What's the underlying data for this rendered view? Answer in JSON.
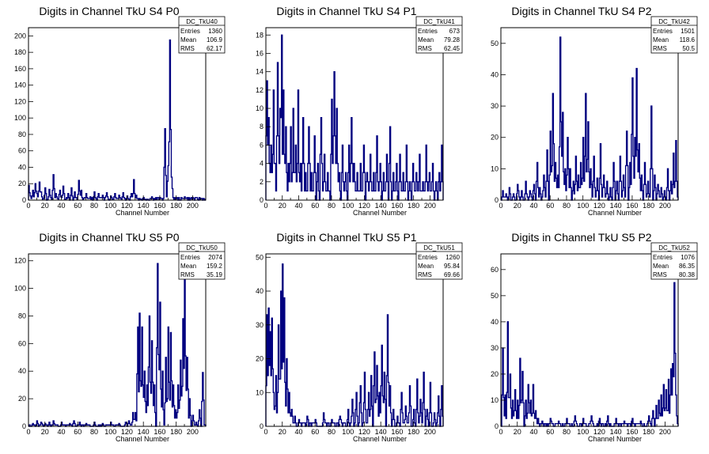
{
  "chart_data": [
    {
      "type": "histogram",
      "title": "Digits in Channel TkU S4 P0",
      "xlabel": "Channel Number",
      "xlim": [
        0,
        216
      ],
      "ylim": [
        0,
        210
      ],
      "xticks": [
        0,
        20,
        40,
        60,
        80,
        100,
        120,
        140,
        160,
        180,
        200
      ],
      "yticks": [
        0,
        20,
        40,
        60,
        80,
        100,
        120,
        140,
        160,
        180,
        200
      ],
      "stats": {
        "name": "DC_TkU40",
        "rows": [
          [
            "Entries",
            "1360"
          ],
          [
            "Mean",
            "106.9"
          ],
          [
            "RMS",
            "62.17"
          ]
        ]
      },
      "peaks": [
        [
          0,
          18
        ],
        [
          2,
          5
        ],
        [
          5,
          12
        ],
        [
          8,
          20
        ],
        [
          10,
          8
        ],
        [
          13,
          22
        ],
        [
          15,
          10
        ],
        [
          20,
          15
        ],
        [
          25,
          13
        ],
        [
          30,
          31
        ],
        [
          33,
          8
        ],
        [
          38,
          12
        ],
        [
          42,
          17
        ],
        [
          48,
          8
        ],
        [
          52,
          15
        ],
        [
          56,
          10
        ],
        [
          61,
          24
        ],
        [
          64,
          12
        ],
        [
          70,
          8
        ],
        [
          75,
          4
        ],
        [
          80,
          10
        ],
        [
          85,
          8
        ],
        [
          90,
          6
        ],
        [
          95,
          9
        ],
        [
          100,
          5
        ],
        [
          105,
          8
        ],
        [
          110,
          6
        ],
        [
          115,
          9
        ],
        [
          120,
          5
        ],
        [
          125,
          8
        ],
        [
          128,
          25
        ],
        [
          131,
          6
        ],
        [
          140,
          3
        ],
        [
          150,
          4
        ],
        [
          160,
          3
        ],
        [
          166,
          87
        ],
        [
          168,
          4
        ],
        [
          170,
          42
        ],
        [
          172,
          195
        ],
        [
          174,
          28
        ],
        [
          178,
          3
        ],
        [
          190,
          4
        ],
        [
          200,
          3
        ],
        [
          210,
          2
        ]
      ],
      "spread": 1,
      "base": 3
    },
    {
      "type": "histogram",
      "title": "Digits in Channel TkU S4 P1",
      "xlabel": "Channel Number",
      "xlim": [
        0,
        216
      ],
      "ylim": [
        0,
        18.8
      ],
      "xticks": [
        0,
        20,
        40,
        60,
        80,
        100,
        120,
        140,
        160,
        180,
        200
      ],
      "yticks": [
        0,
        2,
        4,
        6,
        8,
        10,
        12,
        14,
        16,
        18
      ],
      "stats": {
        "name": "DC_TkU41",
        "rows": [
          [
            "Entries",
            "673"
          ],
          [
            "Mean",
            "79.28"
          ],
          [
            "RMS",
            "62.45"
          ]
        ]
      },
      "peaks": [
        [
          1,
          13
        ],
        [
          3,
          9
        ],
        [
          6,
          6
        ],
        [
          9,
          12
        ],
        [
          11,
          4
        ],
        [
          14,
          15
        ],
        [
          17,
          10
        ],
        [
          19,
          18
        ],
        [
          21,
          12
        ],
        [
          24,
          8
        ],
        [
          27,
          4
        ],
        [
          30,
          8
        ],
        [
          33,
          10
        ],
        [
          36,
          6
        ],
        [
          39,
          12
        ],
        [
          42,
          4
        ],
        [
          45,
          9
        ],
        [
          48,
          3
        ],
        [
          52,
          8
        ],
        [
          55,
          3
        ],
        [
          59,
          7
        ],
        [
          63,
          4
        ],
        [
          67,
          9
        ],
        [
          71,
          5
        ],
        [
          75,
          3
        ],
        [
          80,
          11
        ],
        [
          83,
          14
        ],
        [
          86,
          10
        ],
        [
          89,
          3
        ],
        [
          93,
          6
        ],
        [
          97,
          3
        ],
        [
          101,
          6
        ],
        [
          104,
          9
        ],
        [
          107,
          4
        ],
        [
          111,
          3
        ],
        [
          115,
          4
        ],
        [
          119,
          6
        ],
        [
          123,
          3
        ],
        [
          127,
          5
        ],
        [
          131,
          3
        ],
        [
          135,
          7
        ],
        [
          139,
          4
        ],
        [
          143,
          3
        ],
        [
          147,
          5
        ],
        [
          151,
          8
        ],
        [
          155,
          3
        ],
        [
          159,
          4
        ],
        [
          163,
          5
        ],
        [
          167,
          3
        ],
        [
          171,
          6
        ],
        [
          175,
          2
        ],
        [
          179,
          4
        ],
        [
          183,
          3
        ],
        [
          187,
          5
        ],
        [
          191,
          2
        ],
        [
          195,
          6
        ],
        [
          199,
          3
        ],
        [
          203,
          4
        ],
        [
          207,
          2
        ],
        [
          211,
          3
        ],
        [
          214,
          6
        ]
      ],
      "spread": 1,
      "base": 1
    },
    {
      "type": "histogram",
      "title": "Digits in Channel TkU S4 P2",
      "xlabel": "Channel Number",
      "xlim": [
        0,
        216
      ],
      "ylim": [
        0,
        55
      ],
      "xticks": [
        0,
        20,
        40,
        60,
        80,
        100,
        120,
        140,
        160,
        180,
        200
      ],
      "yticks": [
        0,
        10,
        20,
        30,
        40,
        50
      ],
      "stats": {
        "name": "DC_TkU42",
        "rows": [
          [
            "Entries",
            "1501"
          ],
          [
            "Mean",
            "118.6"
          ],
          [
            "RMS",
            "50.5"
          ]
        ]
      },
      "peaks": [
        [
          2,
          3
        ],
        [
          6,
          2
        ],
        [
          10,
          4
        ],
        [
          15,
          2
        ],
        [
          20,
          5
        ],
        [
          25,
          3
        ],
        [
          30,
          6
        ],
        [
          35,
          3
        ],
        [
          40,
          5
        ],
        [
          44,
          12
        ],
        [
          47,
          4
        ],
        [
          52,
          8
        ],
        [
          56,
          16
        ],
        [
          60,
          22
        ],
        [
          63,
          34
        ],
        [
          66,
          12
        ],
        [
          69,
          8
        ],
        [
          72,
          52
        ],
        [
          75,
          28
        ],
        [
          78,
          10
        ],
        [
          81,
          20
        ],
        [
          84,
          10
        ],
        [
          88,
          6
        ],
        [
          91,
          14
        ],
        [
          94,
          8
        ],
        [
          97,
          12
        ],
        [
          100,
          20
        ],
        [
          103,
          34
        ],
        [
          106,
          25
        ],
        [
          109,
          10
        ],
        [
          113,
          14
        ],
        [
          117,
          7
        ],
        [
          121,
          18
        ],
        [
          125,
          8
        ],
        [
          129,
          6
        ],
        [
          133,
          4
        ],
        [
          137,
          12
        ],
        [
          141,
          6
        ],
        [
          145,
          14
        ],
        [
          149,
          8
        ],
        [
          153,
          22
        ],
        [
          157,
          12
        ],
        [
          160,
          39
        ],
        [
          163,
          20
        ],
        [
          165,
          42
        ],
        [
          168,
          18
        ],
        [
          171,
          8
        ],
        [
          175,
          12
        ],
        [
          179,
          6
        ],
        [
          183,
          30
        ],
        [
          187,
          8
        ],
        [
          191,
          5
        ],
        [
          195,
          4
        ],
        [
          199,
          3
        ],
        [
          203,
          10
        ],
        [
          207,
          6
        ],
        [
          210,
          15
        ],
        [
          213,
          19
        ]
      ],
      "spread": 1,
      "base": 1
    },
    {
      "type": "histogram",
      "title": "Digits in Channel TkU S5 P0",
      "xlabel": "Channel Number",
      "xlim": [
        0,
        216
      ],
      "ylim": [
        0,
        125
      ],
      "xticks": [
        0,
        20,
        40,
        60,
        80,
        100,
        120,
        140,
        160,
        180,
        200
      ],
      "yticks": [
        0,
        20,
        40,
        60,
        80,
        100,
        120
      ],
      "stats": {
        "name": "DC_TkU50",
        "rows": [
          [
            "Entries",
            "2074"
          ],
          [
            "Mean",
            "159.2"
          ],
          [
            "RMS",
            "35.19"
          ]
        ]
      },
      "peaks": [
        [
          5,
          2
        ],
        [
          10,
          4
        ],
        [
          15,
          3
        ],
        [
          20,
          2
        ],
        [
          25,
          3
        ],
        [
          30,
          4
        ],
        [
          40,
          3
        ],
        [
          50,
          2
        ],
        [
          55,
          4
        ],
        [
          62,
          3
        ],
        [
          70,
          2
        ],
        [
          80,
          3
        ],
        [
          90,
          2
        ],
        [
          100,
          3
        ],
        [
          110,
          2
        ],
        [
          118,
          3
        ],
        [
          122,
          4
        ],
        [
          127,
          10
        ],
        [
          130,
          10
        ],
        [
          133,
          72
        ],
        [
          135,
          82
        ],
        [
          138,
          72
        ],
        [
          141,
          40
        ],
        [
          144,
          30
        ],
        [
          147,
          80
        ],
        [
          150,
          62
        ],
        [
          153,
          30
        ],
        [
          157,
          118
        ],
        [
          160,
          90
        ],
        [
          163,
          40
        ],
        [
          167,
          50
        ],
        [
          170,
          72
        ],
        [
          173,
          68
        ],
        [
          176,
          30
        ],
        [
          179,
          12
        ],
        [
          182,
          30
        ],
        [
          185,
          48
        ],
        [
          188,
          78
        ],
        [
          190,
          108
        ],
        [
          193,
          50
        ],
        [
          196,
          20
        ],
        [
          200,
          8
        ],
        [
          204,
          3
        ],
        [
          208,
          12
        ],
        [
          212,
          39
        ]
      ],
      "spread": 1,
      "base": 1
    },
    {
      "type": "histogram",
      "title": "Digits in Channel TkU S5 P1",
      "xlabel": "Channel Number",
      "xlim": [
        0,
        216
      ],
      "ylim": [
        0,
        51
      ],
      "xticks": [
        0,
        20,
        40,
        60,
        80,
        100,
        120,
        140,
        160,
        180,
        200
      ],
      "yticks": [
        0,
        10,
        20,
        30,
        40,
        50
      ],
      "stats": {
        "name": "DC_TkU51",
        "rows": [
          [
            "Entries",
            "1260"
          ],
          [
            "Mean",
            "95.84"
          ],
          [
            "RMS",
            "69.66"
          ]
        ]
      },
      "peaks": [
        [
          1,
          33
        ],
        [
          3,
          35
        ],
        [
          5,
          28
        ],
        [
          7,
          32
        ],
        [
          9,
          10
        ],
        [
          12,
          15
        ],
        [
          15,
          30
        ],
        [
          18,
          40
        ],
        [
          20,
          48
        ],
        [
          22,
          38
        ],
        [
          25,
          20
        ],
        [
          28,
          10
        ],
        [
          31,
          5
        ],
        [
          35,
          3
        ],
        [
          40,
          2
        ],
        [
          50,
          3
        ],
        [
          60,
          2
        ],
        [
          70,
          4
        ],
        [
          80,
          2
        ],
        [
          90,
          3
        ],
        [
          100,
          5
        ],
        [
          105,
          8
        ],
        [
          110,
          10
        ],
        [
          115,
          12
        ],
        [
          120,
          16
        ],
        [
          125,
          10
        ],
        [
          128,
          15
        ],
        [
          132,
          22
        ],
        [
          135,
          18
        ],
        [
          138,
          10
        ],
        [
          141,
          24
        ],
        [
          144,
          16
        ],
        [
          148,
          33
        ],
        [
          151,
          12
        ],
        [
          155,
          5
        ],
        [
          160,
          3
        ],
        [
          165,
          10
        ],
        [
          170,
          6
        ],
        [
          175,
          12
        ],
        [
          180,
          5
        ],
        [
          184,
          14
        ],
        [
          188,
          8
        ],
        [
          192,
          16
        ],
        [
          196,
          5
        ],
        [
          200,
          13
        ],
        [
          205,
          4
        ],
        [
          210,
          9
        ],
        [
          214,
          12
        ]
      ],
      "spread": 1,
      "base": 1
    },
    {
      "type": "histogram",
      "title": "Digits in Channel TkU S5 P2",
      "xlabel": "Channel Number",
      "xlim": [
        0,
        216
      ],
      "ylim": [
        0,
        66
      ],
      "xticks": [
        0,
        20,
        40,
        60,
        80,
        100,
        120,
        140,
        160,
        180,
        200
      ],
      "yticks": [
        0,
        10,
        20,
        30,
        40,
        50,
        60
      ],
      "stats": {
        "name": "DC_TkU52",
        "rows": [
          [
            "Entries",
            "1076"
          ],
          [
            "Mean",
            "86.35"
          ],
          [
            "RMS",
            "80.38"
          ]
        ]
      },
      "peaks": [
        [
          2,
          30
        ],
        [
          5,
          12
        ],
        [
          8,
          40
        ],
        [
          11,
          20
        ],
        [
          14,
          10
        ],
        [
          17,
          14
        ],
        [
          20,
          10
        ],
        [
          23,
          26
        ],
        [
          26,
          21
        ],
        [
          30,
          10
        ],
        [
          33,
          16
        ],
        [
          36,
          10
        ],
        [
          39,
          16
        ],
        [
          42,
          6
        ],
        [
          45,
          3
        ],
        [
          50,
          2
        ],
        [
          60,
          3
        ],
        [
          70,
          2
        ],
        [
          80,
          3
        ],
        [
          90,
          4
        ],
        [
          100,
          3
        ],
        [
          110,
          4
        ],
        [
          120,
          3
        ],
        [
          130,
          4
        ],
        [
          140,
          3
        ],
        [
          150,
          2
        ],
        [
          160,
          3
        ],
        [
          170,
          2
        ],
        [
          180,
          4
        ],
        [
          185,
          6
        ],
        [
          189,
          8
        ],
        [
          192,
          10
        ],
        [
          195,
          12
        ],
        [
          198,
          16
        ],
        [
          201,
          14
        ],
        [
          204,
          18
        ],
        [
          207,
          22
        ],
        [
          209,
          24
        ],
        [
          211,
          55
        ],
        [
          213,
          12
        ]
      ],
      "spread": 1,
      "base": 1
    }
  ]
}
